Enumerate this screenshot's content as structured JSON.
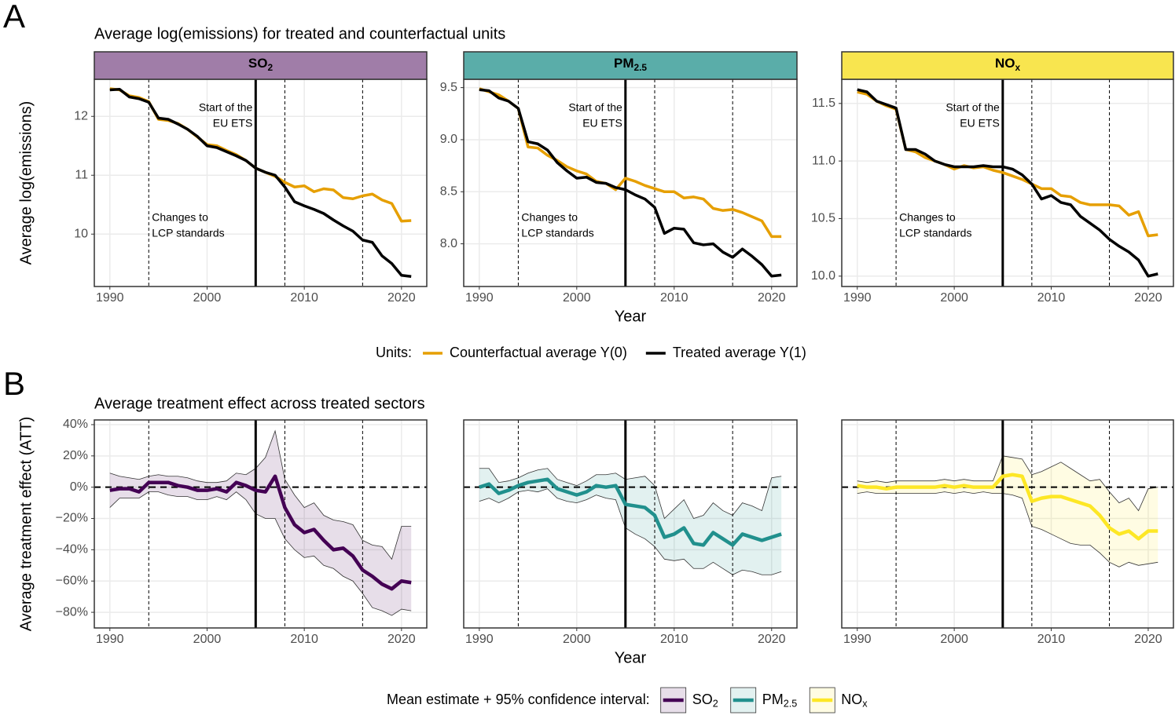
{
  "chart_data": [
    {
      "type": "line",
      "panel_label": "A",
      "title": "Average log(emissions) for treated and counterfactual units",
      "ylabel": "Average log(emissions)",
      "legend_title": "Units:",
      "strip": {
        "main": "SO",
        "sub": "2",
        "color": "#a07da8"
      },
      "x": [
        1990,
        1991,
        1992,
        1993,
        1994,
        1995,
        1996,
        1997,
        1998,
        1999,
        2000,
        2001,
        2002,
        2003,
        2004,
        2005,
        2006,
        2007,
        2008,
        2009,
        2010,
        2011,
        2012,
        2013,
        2014,
        2015,
        2016,
        2017,
        2018,
        2019,
        2020,
        2021
      ],
      "series": [
        {
          "name": "Counterfactual average Y(0)",
          "color": "#e69f00",
          "values": [
            12.47,
            12.45,
            12.35,
            12.32,
            12.25,
            11.95,
            11.93,
            11.88,
            11.78,
            11.65,
            11.52,
            11.5,
            11.42,
            11.35,
            11.25,
            11.12,
            11.05,
            10.98,
            10.88,
            10.8,
            10.82,
            10.72,
            10.77,
            10.75,
            10.62,
            10.6,
            10.65,
            10.68,
            10.58,
            10.52,
            10.22,
            10.23
          ]
        },
        {
          "name": "Treated average Y(1)",
          "color": "#000000",
          "values": [
            12.45,
            12.46,
            12.33,
            12.3,
            12.24,
            11.97,
            11.95,
            11.87,
            11.78,
            11.66,
            11.5,
            11.47,
            11.4,
            11.33,
            11.25,
            11.12,
            11.05,
            11.0,
            10.8,
            10.55,
            10.48,
            10.42,
            10.35,
            10.24,
            10.14,
            10.05,
            9.9,
            9.86,
            9.63,
            9.5,
            9.3,
            9.28
          ]
        }
      ],
      "xlim": [
        1988.4,
        2022.6
      ],
      "xticks": [
        1990,
        2000,
        2010,
        2020
      ],
      "ylim": [
        9.11,
        12.63
      ],
      "yticks": [
        10,
        11,
        12
      ],
      "events": [
        {
          "x": 1994,
          "style": "dashed"
        },
        {
          "x": 2005,
          "style": "solid"
        },
        {
          "x": 2008,
          "style": "dashed"
        },
        {
          "x": 2016,
          "style": "dashed"
        }
      ],
      "annotations": [
        [
          "Start of the",
          "EU ETS"
        ],
        [
          "Changes to",
          "LCP standards"
        ]
      ]
    },
    {
      "type": "line",
      "xlabel": "Year",
      "strip": {
        "main": "PM",
        "sub": "2.5",
        "color": "#5aada9"
      },
      "x": [
        1990,
        1991,
        1992,
        1993,
        1994,
        1995,
        1996,
        1997,
        1998,
        1999,
        2000,
        2001,
        2002,
        2003,
        2004,
        2005,
        2006,
        2007,
        2008,
        2009,
        2010,
        2011,
        2012,
        2013,
        2014,
        2015,
        2016,
        2017,
        2018,
        2019,
        2020,
        2021
      ],
      "series": [
        {
          "color": "#e69f00",
          "values": [
            9.49,
            9.46,
            9.43,
            9.37,
            9.3,
            8.93,
            8.92,
            8.85,
            8.8,
            8.74,
            8.7,
            8.67,
            8.6,
            8.58,
            8.52,
            8.63,
            8.6,
            8.56,
            8.53,
            8.5,
            8.5,
            8.44,
            8.45,
            8.43,
            8.34,
            8.32,
            8.33,
            8.3,
            8.26,
            8.22,
            8.07,
            8.07
          ]
        },
        {
          "color": "#000000",
          "values": [
            9.48,
            9.47,
            9.4,
            9.37,
            9.3,
            8.98,
            8.96,
            8.9,
            8.78,
            8.7,
            8.63,
            8.64,
            8.59,
            8.58,
            8.54,
            8.52,
            8.47,
            8.43,
            8.35,
            8.1,
            8.15,
            8.14,
            8.01,
            7.99,
            8.0,
            7.92,
            7.87,
            7.95,
            7.88,
            7.8,
            7.69,
            7.7
          ]
        }
      ],
      "xlim": [
        1988.4,
        2022.6
      ],
      "xticks": [
        1990,
        2000,
        2010,
        2020
      ],
      "ylim": [
        7.59,
        9.58
      ],
      "yticks": [
        {
          "value": 8,
          "label": "8.0"
        },
        8.5,
        {
          "value": 9,
          "label": "9.0"
        },
        9.5
      ],
      "events": [
        {
          "x": 1994,
          "style": "dashed"
        },
        {
          "x": 2005,
          "style": "solid"
        },
        {
          "x": 2008,
          "style": "dashed"
        },
        {
          "x": 2016,
          "style": "dashed"
        }
      ],
      "annotations": [
        [
          "Start of the",
          "EU ETS"
        ],
        [
          "Changes to",
          "LCP standards"
        ]
      ]
    },
    {
      "type": "line",
      "strip": {
        "main": "NO",
        "sub": "x",
        "color": "#f8e54f"
      },
      "x": [
        1990,
        1991,
        1992,
        1993,
        1994,
        1995,
        1996,
        1997,
        1998,
        1999,
        2000,
        2001,
        2002,
        2003,
        2004,
        2005,
        2006,
        2007,
        2008,
        2009,
        2010,
        2011,
        2012,
        2013,
        2014,
        2015,
        2016,
        2017,
        2018,
        2019,
        2020,
        2021
      ],
      "series": [
        {
          "color": "#e69f00",
          "values": [
            11.6,
            11.58,
            11.52,
            11.48,
            11.45,
            11.1,
            11.08,
            11.03,
            11.0,
            10.97,
            10.93,
            10.96,
            10.94,
            10.95,
            10.92,
            10.9,
            10.87,
            10.84,
            10.8,
            10.76,
            10.76,
            10.7,
            10.69,
            10.64,
            10.62,
            10.62,
            10.62,
            10.61,
            10.53,
            10.56,
            10.35,
            10.36
          ]
        },
        {
          "color": "#000000",
          "values": [
            11.62,
            11.6,
            11.52,
            11.49,
            11.46,
            11.1,
            11.1,
            11.06,
            11.0,
            10.97,
            10.95,
            10.95,
            10.95,
            10.96,
            10.95,
            10.95,
            10.93,
            10.88,
            10.8,
            10.67,
            10.7,
            10.64,
            10.62,
            10.52,
            10.46,
            10.4,
            10.32,
            10.26,
            10.21,
            10.14,
            10.0,
            10.02
          ]
        }
      ],
      "xlim": [
        1988.4,
        2022.6
      ],
      "xticks": [
        1990,
        2000,
        2010,
        2020
      ],
      "ylim": [
        9.91,
        11.71
      ],
      "yticks": [
        {
          "value": 10,
          "label": "10.0"
        },
        10.5,
        {
          "value": 11,
          "label": "11.0"
        },
        11.5
      ],
      "events": [
        {
          "x": 1994,
          "style": "dashed"
        },
        {
          "x": 2005,
          "style": "solid"
        },
        {
          "x": 2008,
          "style": "dashed"
        },
        {
          "x": 2016,
          "style": "dashed"
        }
      ],
      "annotations": [
        [
          "Start of the",
          "EU ETS"
        ],
        [
          "Changes to",
          "LCP standards"
        ]
      ]
    },
    {
      "type": "band",
      "panel_label": "B",
      "title": "Average treatment effect across treated sectors",
      "ylabel": "Average treatment effect (ATT)",
      "legend_title": "Mean estimate + 95% confidence interval:",
      "x": [
        1990,
        1991,
        1992,
        1993,
        1994,
        1995,
        1996,
        1997,
        1998,
        1999,
        2000,
        2001,
        2002,
        2003,
        2004,
        2005,
        2006,
        2007,
        2008,
        2009,
        2010,
        2011,
        2012,
        2013,
        2014,
        2015,
        2016,
        2017,
        2018,
        2019,
        2020,
        2021
      ],
      "series": [
        {
          "name": {
            "main": "SO",
            "sub": "2"
          },
          "color": "#440154",
          "values": [
            -2,
            -1,
            -1,
            -3,
            3,
            3,
            3,
            1,
            0,
            -2,
            -2,
            -1,
            -3,
            3,
            1,
            -2,
            -3,
            7,
            -13,
            -24,
            -29,
            -27,
            -34,
            -40,
            -39,
            -44,
            -53,
            -57,
            -62,
            -65,
            -60,
            -61
          ],
          "lower": [
            -13,
            -7,
            -7,
            -7,
            -3,
            -3,
            -5,
            -6,
            -6,
            -8,
            -8,
            -6,
            -8,
            -3,
            -8,
            -17,
            -20,
            -20,
            -33,
            -40,
            -45,
            -44,
            -50,
            -52,
            -57,
            -60,
            -68,
            -77,
            -79,
            -82,
            -78,
            -79
          ],
          "upper": [
            9,
            7,
            6,
            5,
            7,
            8,
            7,
            7,
            6,
            4,
            3,
            3,
            4,
            9,
            8,
            12,
            19,
            36,
            5,
            -5,
            -13,
            -10,
            -18,
            -21,
            -22,
            -24,
            -34,
            -37,
            -38,
            -46,
            -25,
            -25
          ]
        }
      ],
      "xlim": [
        1988.4,
        2022.6
      ],
      "xticks": [
        1990,
        2000,
        2010,
        2020
      ],
      "ylim": [
        -90,
        43
      ],
      "yticks": [
        {
          "value": -80,
          "label": "−80%"
        },
        {
          "value": -60,
          "label": "−60%"
        },
        {
          "value": -40,
          "label": "−40%"
        },
        {
          "value": -20,
          "label": "−20%"
        },
        {
          "value": 0,
          "label": "0%"
        },
        {
          "value": 20,
          "label": "20%"
        },
        {
          "value": 40,
          "label": "40%"
        }
      ],
      "reference_line": 0,
      "events": [
        {
          "x": 1994,
          "style": "dashed"
        },
        {
          "x": 2005,
          "style": "solid"
        },
        {
          "x": 2008,
          "style": "dashed"
        },
        {
          "x": 2016,
          "style": "dashed"
        }
      ]
    },
    {
      "type": "band",
      "xlabel": "Year",
      "x": [
        1990,
        1991,
        1992,
        1993,
        1994,
        1995,
        1996,
        1997,
        1998,
        1999,
        2000,
        2001,
        2002,
        2003,
        2004,
        2005,
        2006,
        2007,
        2008,
        2009,
        2010,
        2011,
        2012,
        2013,
        2014,
        2015,
        2016,
        2017,
        2018,
        2019,
        2020,
        2021
      ],
      "series": [
        {
          "name": {
            "main": "PM",
            "sub": "2.5"
          },
          "color": "#21908d",
          "values": [
            0,
            2,
            -4,
            -2,
            1,
            3,
            4,
            5,
            -1,
            -3,
            -5,
            -3,
            1,
            0,
            1,
            -11,
            -12,
            -13,
            -18,
            -32,
            -30,
            -26,
            -36,
            -37,
            -29,
            -33,
            -37,
            -30,
            -32,
            -34,
            -32,
            -30
          ],
          "lower": [
            -9,
            -7,
            -10,
            -7,
            -3,
            -2,
            -3,
            -1,
            -7,
            -9,
            -10,
            -8,
            -5,
            -7,
            -8,
            -26,
            -30,
            -33,
            -38,
            -46,
            -47,
            -46,
            -52,
            -52,
            -48,
            -52,
            -56,
            -53,
            -54,
            -56,
            -56,
            -54
          ],
          "upper": [
            12,
            12,
            3,
            4,
            6,
            9,
            11,
            12,
            5,
            3,
            1,
            4,
            8,
            8,
            9,
            5,
            6,
            7,
            1,
            -20,
            -14,
            -8,
            -20,
            -18,
            -10,
            -15,
            -18,
            -10,
            -12,
            -15,
            6,
            7
          ]
        }
      ],
      "xlim": [
        1988.4,
        2022.6
      ],
      "xticks": [
        1990,
        2000,
        2010,
        2020
      ],
      "ylim": [
        -90,
        43
      ],
      "reference_line": 0,
      "events": [
        {
          "x": 1994,
          "style": "dashed"
        },
        {
          "x": 2005,
          "style": "solid"
        },
        {
          "x": 2008,
          "style": "dashed"
        },
        {
          "x": 2016,
          "style": "dashed"
        }
      ]
    },
    {
      "type": "band",
      "x": [
        1990,
        1991,
        1992,
        1993,
        1994,
        1995,
        1996,
        1997,
        1998,
        1999,
        2000,
        2001,
        2002,
        2003,
        2004,
        2005,
        2006,
        2007,
        2008,
        2009,
        2010,
        2011,
        2012,
        2013,
        2014,
        2015,
        2016,
        2017,
        2018,
        2019,
        2020,
        2021
      ],
      "series": [
        {
          "name": {
            "main": "NO",
            "sub": "x"
          },
          "color": "#fde725",
          "values": [
            1,
            0,
            0,
            -1,
            0,
            0,
            0,
            0,
            0,
            1,
            0,
            1,
            0,
            0,
            0,
            7,
            8,
            7,
            -9,
            -7,
            -6,
            -6,
            -8,
            -10,
            -12,
            -18,
            -26,
            -30,
            -28,
            -33,
            -28,
            -28
          ],
          "lower": [
            -4,
            -3,
            -4,
            -4,
            -4,
            -4,
            -4,
            -4,
            -4,
            -3,
            -4,
            -3,
            -4,
            -3,
            -4,
            -4,
            -5,
            -7,
            -25,
            -27,
            -30,
            -33,
            -36,
            -37,
            -37,
            -42,
            -48,
            -51,
            -48,
            -50,
            -49,
            -48
          ],
          "upper": [
            4,
            3,
            4,
            3,
            4,
            4,
            4,
            4,
            4,
            5,
            4,
            5,
            4,
            4,
            4,
            20,
            19,
            18,
            8,
            10,
            13,
            16,
            12,
            8,
            4,
            5,
            -3,
            -10,
            -7,
            -15,
            -1,
            0
          ]
        }
      ],
      "xlim": [
        1988.4,
        2022.6
      ],
      "xticks": [
        1990,
        2000,
        2010,
        2020
      ],
      "ylim": [
        -90,
        43
      ],
      "reference_line": 0,
      "events": [
        {
          "x": 1994,
          "style": "dashed"
        },
        {
          "x": 2005,
          "style": "solid"
        },
        {
          "x": 2008,
          "style": "dashed"
        },
        {
          "x": 2016,
          "style": "dashed"
        }
      ]
    }
  ]
}
